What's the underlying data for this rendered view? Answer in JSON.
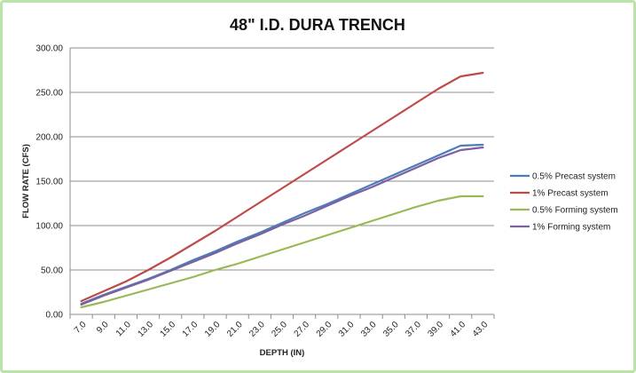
{
  "chart_data": {
    "type": "line",
    "title": "48\" I.D. DURA TRENCH",
    "xlabel": "DEPTH (IN)",
    "ylabel": "FLOW RATE (CFS)",
    "ylim": [
      0,
      300
    ],
    "y_ticks": [
      "0.00",
      "50.00",
      "100.00",
      "150.00",
      "200.00",
      "250.00",
      "300.00"
    ],
    "x": [
      7,
      9,
      11,
      13,
      15,
      17,
      19,
      21,
      23,
      25,
      27,
      29,
      31,
      33,
      35,
      37,
      39,
      41,
      43
    ],
    "x_tick_labels": [
      "7.0",
      "9.0",
      "11.0",
      "13.0",
      "15.0",
      "17.0",
      "19.0",
      "21.0",
      "23.0",
      "25.0",
      "27.0",
      "29.0",
      "31.0",
      "33.0",
      "35.0",
      "37.0",
      "39.0",
      "41.0",
      "43.0"
    ],
    "grid": "horizontal",
    "legend_position": "right",
    "series": [
      {
        "name": "0.5% Precast system",
        "color": "#4a7ebb",
        "values": [
          12,
          22,
          31,
          40,
          50,
          61,
          71,
          82,
          92,
          103,
          114,
          124,
          135,
          146,
          157,
          168,
          179,
          190,
          191
        ]
      },
      {
        "name": "1% Precast system",
        "color": "#be4b48",
        "values": [
          15,
          26,
          37,
          50,
          64,
          79,
          94,
          110,
          126,
          142,
          158,
          174,
          190,
          206,
          222,
          238,
          254,
          268,
          272
        ]
      },
      {
        "name": "0.5% Forming system",
        "color": "#98b954",
        "values": [
          8,
          14,
          21,
          28,
          35,
          42,
          50,
          57,
          65,
          73,
          81,
          89,
          97,
          105,
          113,
          121,
          128,
          133,
          133
        ]
      },
      {
        "name": "1% Forming system",
        "color": "#7d60a0",
        "values": [
          11,
          21,
          30,
          39,
          49,
          59,
          69,
          80,
          90,
          101,
          111,
          122,
          133,
          143,
          154,
          165,
          176,
          185,
          188
        ]
      }
    ]
  }
}
